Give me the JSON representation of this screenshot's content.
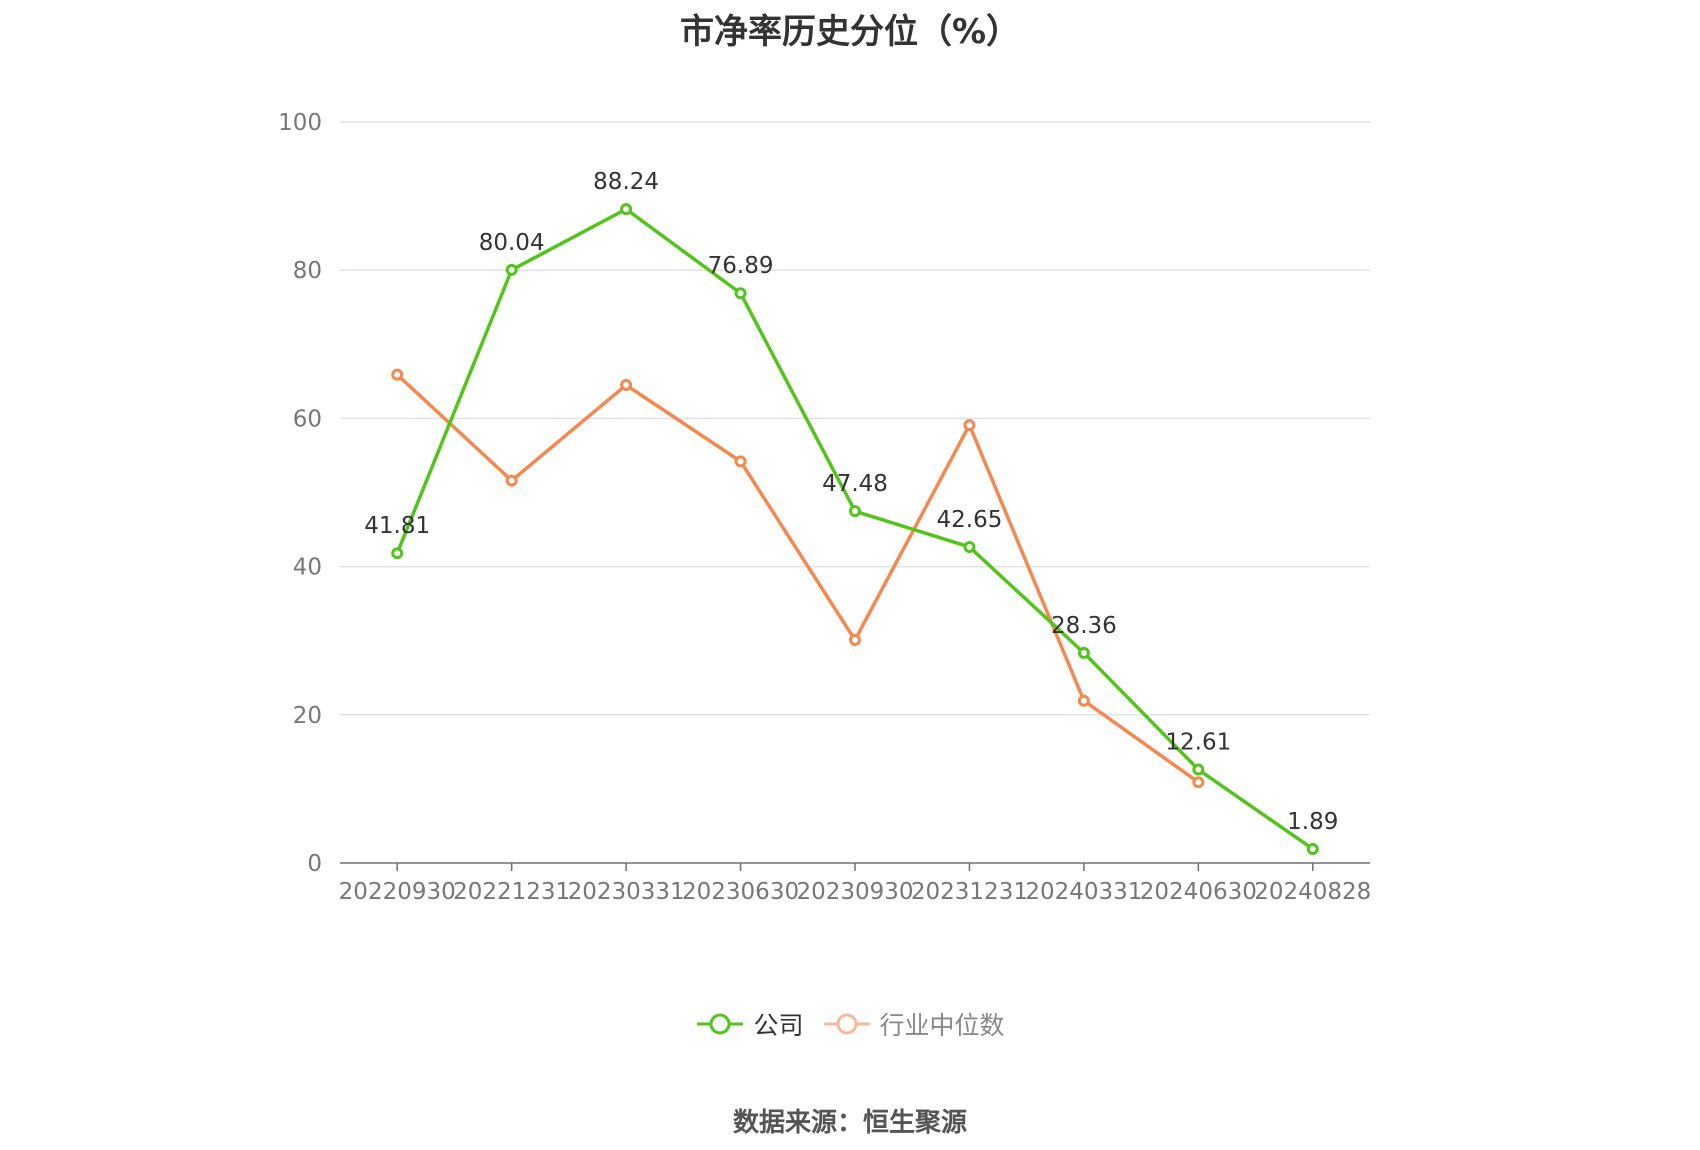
{
  "title": "市净率历史分位（%）",
  "source": "数据来源：恒生聚源",
  "colors": {
    "company": "#52c41a",
    "industry": "#f5884f",
    "industry_legend": "#f9b89a",
    "grid": "#e0e3ea",
    "axis": "#6e7079"
  },
  "chart_data": {
    "type": "line",
    "title": "市净率历史分位（%）",
    "categories": [
      "20220930",
      "20221231",
      "20230331",
      "20230630",
      "20230930",
      "20231231",
      "20240331",
      "20240630",
      "20240828"
    ],
    "ylim": [
      0,
      100
    ],
    "yticks": [
      0,
      20,
      40,
      60,
      80,
      100
    ],
    "grid": true,
    "legend_position": "bottom",
    "series": [
      {
        "name": "公司",
        "values": [
          41.81,
          80.04,
          88.24,
          76.89,
          47.48,
          42.65,
          28.36,
          12.61,
          1.89
        ],
        "labels": [
          "41.81",
          "80.04",
          "88.24",
          "76.89",
          "47.48",
          "42.65",
          "28.36",
          "12.61",
          "1.89"
        ]
      },
      {
        "name": "行业中位数",
        "values": [
          65.9,
          51.6,
          64.5,
          54.2,
          30.1,
          59.1,
          21.9,
          10.9,
          null
        ]
      }
    ]
  }
}
